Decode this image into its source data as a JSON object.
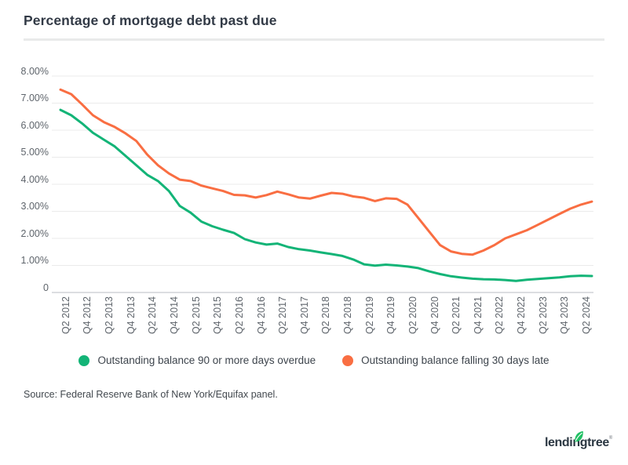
{
  "title": "Percentage of mortgage debt past due",
  "source_note": "Source: Federal Reserve Bank of New York/Equifax panel.",
  "logo": {
    "text": "lendingtree",
    "reg": "®",
    "leaf_icon": "leaf-icon",
    "leaf_color": "#21c064"
  },
  "colors": {
    "green_series": "#13b477",
    "orange_series": "#f96e42",
    "gridline": "#ebebeb",
    "zero_axis": "#c7cbcf",
    "tick_text": "#5f656c",
    "title_text": "#323a46"
  },
  "chart_data": {
    "type": "line",
    "title": "Percentage of mortgage debt past due",
    "xlabel": "",
    "ylabel": "",
    "ylim": [
      0,
      8
    ],
    "grid": "horizontal",
    "legend_position": "bottom",
    "x": [
      "Q1 2012",
      "Q2 2012",
      "Q3 2012",
      "Q4 2012",
      "Q1 2013",
      "Q2 2013",
      "Q3 2013",
      "Q4 2013",
      "Q1 2014",
      "Q2 2014",
      "Q3 2014",
      "Q4 2014",
      "Q1 2015",
      "Q2 2015",
      "Q3 2015",
      "Q4 2015",
      "Q1 2016",
      "Q2 2016",
      "Q3 2016",
      "Q4 2016",
      "Q1 2017",
      "Q2 2017",
      "Q3 2017",
      "Q4 2017",
      "Q1 2018",
      "Q2 2018",
      "Q3 2018",
      "Q4 2018",
      "Q1 2019",
      "Q2 2019",
      "Q3 2019",
      "Q4 2019",
      "Q1 2020",
      "Q2 2020",
      "Q3 2020",
      "Q4 2020",
      "Q1 2021",
      "Q2 2021",
      "Q3 2021",
      "Q4 2021",
      "Q1 2022",
      "Q2 2022",
      "Q3 2022",
      "Q4 2022",
      "Q1 2023",
      "Q2 2023",
      "Q3 2023",
      "Q4 2023",
      "Q1 2024",
      "Q2 2024"
    ],
    "x_tick_labels": [
      "Q2 2012",
      "Q4 2012",
      "Q2 2013",
      "Q4 2013",
      "Q2 2014",
      "Q4 2014",
      "Q2 2015",
      "Q4 2015",
      "Q2 2016",
      "Q4 2016",
      "Q2 2017",
      "Q4 2017",
      "Q2 2018",
      "Q4 2018",
      "Q2 2019",
      "Q4 2019",
      "Q2 2020",
      "Q4 2020",
      "Q2 2021",
      "Q4 2021",
      "Q2 2022",
      "Q4 2022",
      "Q2 2023",
      "Q4 2023",
      "Q2 2024"
    ],
    "yticks": [
      {
        "label": "8.00%",
        "value": 8
      },
      {
        "label": "7.00%",
        "value": 7
      },
      {
        "label": "6.00%",
        "value": 6
      },
      {
        "label": "5.00%",
        "value": 5
      },
      {
        "label": "4.00%",
        "value": 4
      },
      {
        "label": "3.00%",
        "value": 3
      },
      {
        "label": "2.00%",
        "value": 2
      },
      {
        "label": "1.00%",
        "value": 1
      },
      {
        "label": "0",
        "value": 0
      }
    ],
    "series": [
      {
        "name": "Outstanding balance 90 or more days overdue",
        "color": "#13b477",
        "values": [
          6.75,
          6.55,
          6.25,
          5.9,
          5.65,
          5.4,
          5.05,
          4.7,
          4.35,
          4.12,
          3.75,
          3.2,
          2.95,
          2.62,
          2.45,
          2.32,
          2.2,
          1.97,
          1.85,
          1.77,
          1.81,
          1.68,
          1.6,
          1.55,
          1.48,
          1.42,
          1.35,
          1.22,
          1.04,
          0.99,
          1.03,
          1.0,
          0.96,
          0.9,
          0.78,
          0.68,
          0.6,
          0.55,
          0.51,
          0.49,
          0.48,
          0.46,
          0.43,
          0.47,
          0.5,
          0.53,
          0.56,
          0.6,
          0.62,
          0.61
        ]
      },
      {
        "name": "Outstanding balance falling 30 days late",
        "color": "#f96e42",
        "values": [
          7.5,
          7.33,
          6.95,
          6.55,
          6.3,
          6.12,
          5.88,
          5.6,
          5.1,
          4.7,
          4.4,
          4.17,
          4.12,
          3.95,
          3.85,
          3.75,
          3.61,
          3.59,
          3.51,
          3.6,
          3.73,
          3.63,
          3.51,
          3.47,
          3.58,
          3.68,
          3.65,
          3.55,
          3.5,
          3.38,
          3.48,
          3.46,
          3.25,
          2.75,
          2.25,
          1.75,
          1.52,
          1.43,
          1.4,
          1.55,
          1.75,
          2.0,
          2.15,
          2.3,
          2.5,
          2.7,
          2.9,
          3.1,
          3.25,
          3.36
        ]
      }
    ]
  }
}
